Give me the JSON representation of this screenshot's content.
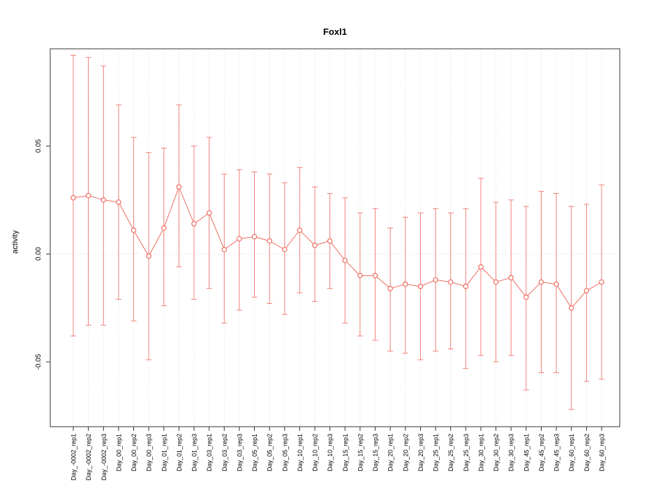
{
  "chart_data": {
    "type": "scatter",
    "subtype": "points-with-error-bars-connected-line",
    "title": "Foxl1",
    "ylabel": "activity",
    "xlabel": "",
    "categories": [
      "Day_-0002_rep1",
      "Day_-0002_rep2",
      "Day_-0002_rep3",
      "Day_00_rep1",
      "Day_00_rep2",
      "Day_00_rep3",
      "Day_01_rep1",
      "Day_01_rep2",
      "Day_01_rep3",
      "Day_03_rep1",
      "Day_03_rep2",
      "Day_03_rep3",
      "Day_05_rep1",
      "Day_05_rep2",
      "Day_05_rep3",
      "Day_10_rep1",
      "Day_10_rep2",
      "Day_10_rep3",
      "Day_15_rep1",
      "Day_15_rep2",
      "Day_15_rep3",
      "Day_20_rep1",
      "Day_20_rep2",
      "Day_20_rep3",
      "Day_25_rep1",
      "Day_25_rep2",
      "Day_25_rep3",
      "Day_30_rep1",
      "Day_30_rep2",
      "Day_30_rep3",
      "Day_45_rep1",
      "Day_45_rep2",
      "Day_45_rep3",
      "Day_60_rep1",
      "Day_60_rep2",
      "Day_60_rep3"
    ],
    "series": [
      {
        "name": "activity",
        "values": [
          0.026,
          0.027,
          0.025,
          0.024,
          0.011,
          -0.001,
          0.012,
          0.031,
          0.014,
          0.019,
          0.002,
          0.007,
          0.008,
          0.006,
          0.002,
          0.011,
          0.004,
          0.006,
          -0.003,
          -0.01,
          -0.01,
          -0.016,
          -0.014,
          -0.015,
          -0.012,
          -0.013,
          -0.015,
          -0.006,
          -0.013,
          -0.011,
          -0.02,
          -0.013,
          -0.014,
          -0.025,
          -0.017,
          -0.013
        ],
        "upper": [
          0.092,
          0.091,
          0.087,
          0.069,
          0.054,
          0.047,
          0.049,
          0.069,
          0.05,
          0.054,
          0.037,
          0.039,
          0.038,
          0.037,
          0.033,
          0.04,
          0.031,
          0.028,
          0.026,
          0.019,
          0.021,
          0.012,
          0.017,
          0.019,
          0.021,
          0.019,
          0.021,
          0.035,
          0.024,
          0.025,
          0.022,
          0.029,
          0.028,
          0.022,
          0.023,
          0.032
        ],
        "lower": [
          -0.038,
          -0.033,
          -0.033,
          -0.021,
          -0.031,
          -0.049,
          -0.024,
          -0.006,
          -0.021,
          -0.016,
          -0.032,
          -0.026,
          -0.02,
          -0.023,
          -0.028,
          -0.018,
          -0.022,
          -0.016,
          -0.032,
          -0.038,
          -0.04,
          -0.045,
          -0.046,
          -0.049,
          -0.045,
          -0.044,
          -0.053,
          -0.047,
          -0.05,
          -0.047,
          -0.063,
          -0.055,
          -0.055,
          -0.072,
          -0.059,
          -0.058
        ]
      }
    ],
    "ylim": [
      -0.08,
      0.095
    ],
    "yticks": [
      -0.05,
      0,
      0.05
    ],
    "ytick_labels": [
      "-0.05",
      "0.00",
      "0.05"
    ],
    "grid": "vertical-dotted",
    "zero_line": true,
    "legend": "none",
    "colors": {
      "point": "#ee6a5f",
      "errorbar": "#f08078",
      "grid": "#d9d9d9",
      "box": "#333333",
      "text": "#000000"
    }
  }
}
